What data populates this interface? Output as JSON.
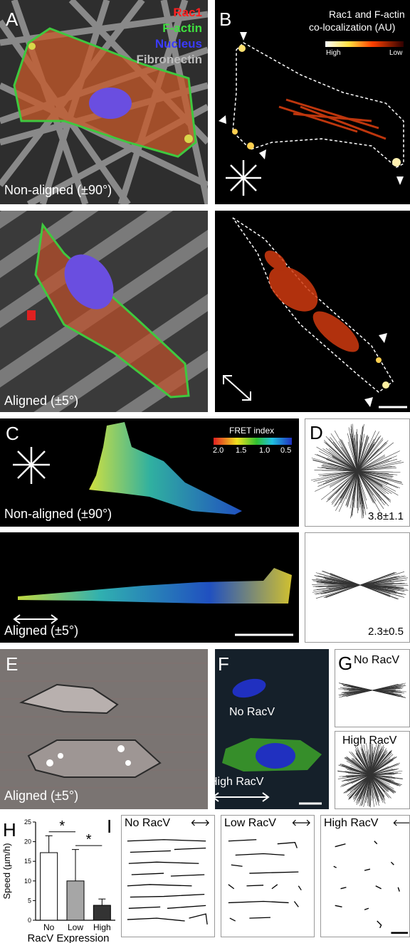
{
  "panels": {
    "A": {
      "label": "A",
      "legend": {
        "rac1": "Rac1",
        "factin": "F-actin",
        "nucleus": "Nucleus",
        "fibronectin": "Fibronectin"
      },
      "cond_top": "Non-aligned (±90°)",
      "cond_bottom": "Aligned (±5°)"
    },
    "B": {
      "label": "B",
      "colorbar_title_1": "Rac1 and F-actin",
      "colorbar_title_2": "co-localization (AU)",
      "colorbar_high": "High",
      "colorbar_low": "Low"
    },
    "C": {
      "label": "C",
      "fret_title": "FRET index",
      "fret_ticks": [
        "2.0",
        "1.5",
        "1.0",
        "0.5"
      ],
      "cond_top": "Non-aligned (±90°)",
      "cond_bottom": "Aligned (±5°)"
    },
    "D": {
      "label": "D",
      "value_top": "3.8±1.1",
      "value_bottom": "2.3±0.5"
    },
    "E": {
      "label": "E",
      "cond": "Aligned (±5°)"
    },
    "F": {
      "label": "F",
      "no_racv": "No RacV",
      "high_racv": "High RacV"
    },
    "G": {
      "label": "G",
      "no_racv": "No RacV",
      "high_racv": "High RacV"
    },
    "H": {
      "label": "H"
    },
    "I": {
      "label": "I",
      "tracks": [
        "No RacV",
        "Low RacV",
        "High RacV"
      ]
    }
  },
  "chart_data": {
    "type": "bar",
    "categories": [
      "No",
      "Low",
      "High"
    ],
    "xlabel": "RacV Expression",
    "ylabel": "Speed (µm/h)",
    "ylim": [
      0,
      25
    ],
    "yticks": [
      0,
      5,
      10,
      15,
      20,
      25
    ],
    "values": [
      17.2,
      10.0,
      3.8
    ],
    "errors": [
      4.3,
      8.0,
      1.6
    ],
    "bar_colors": [
      "#ffffff",
      "#a6a6a6",
      "#333333"
    ],
    "significance": [
      "*",
      "*"
    ]
  }
}
